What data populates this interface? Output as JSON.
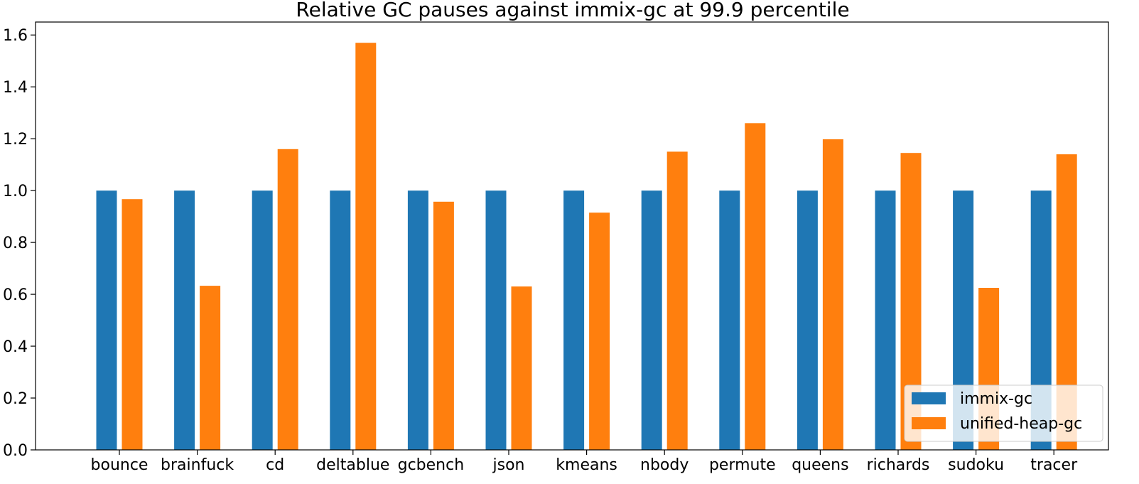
{
  "chart_data": {
    "type": "bar",
    "title": "Relative GC pauses against immix-gc at 99.9 percentile",
    "xlabel": "",
    "ylabel": "",
    "ylim": [
      0,
      1.65
    ],
    "yticks": [
      0.0,
      0.2,
      0.4,
      0.6,
      0.8,
      1.0,
      1.2,
      1.4,
      1.6
    ],
    "ytick_labels": [
      "0.0",
      "0.2",
      "0.4",
      "0.6",
      "0.8",
      "1.0",
      "1.2",
      "1.4",
      "1.6"
    ],
    "grid": false,
    "legend_position": "lower-right",
    "categories": [
      "bounce",
      "brainfuck",
      "cd",
      "deltablue",
      "gcbench",
      "json",
      "kmeans",
      "nbody",
      "permute",
      "queens",
      "richards",
      "sudoku",
      "tracer"
    ],
    "series": [
      {
        "name": "immix-gc",
        "color": "#1f77b4",
        "values": [
          1.0,
          1.0,
          1.0,
          1.0,
          1.0,
          1.0,
          1.0,
          1.0,
          1.0,
          1.0,
          1.0,
          1.0,
          1.0
        ]
      },
      {
        "name": "unified-heap-gc",
        "color": "#ff7f0e",
        "values": [
          0.967,
          0.633,
          1.16,
          1.57,
          0.957,
          0.63,
          0.915,
          1.15,
          1.26,
          1.198,
          1.145,
          0.625,
          1.14
        ]
      }
    ]
  }
}
